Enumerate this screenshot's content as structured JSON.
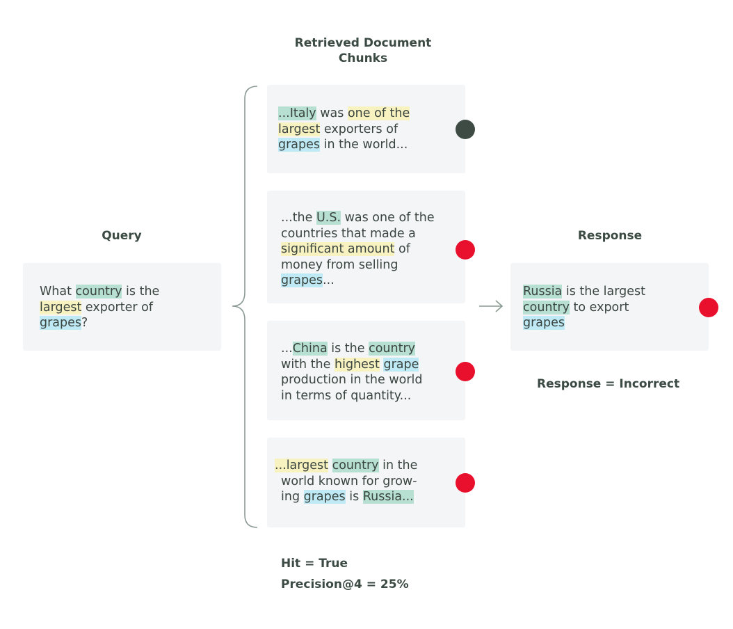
{
  "colors": {
    "relevant_dot": "#3d4b44",
    "irrelevant_dot": "#e8102c",
    "highlight_green": "#b7e0d2",
    "highlight_yellow": "#f8f1c0",
    "highlight_blue": "#bfe9f5"
  },
  "query": {
    "heading": "Query",
    "lines": [
      [
        {
          "text": "What ",
          "hl": ""
        },
        {
          "text": "country",
          "hl": "green"
        },
        {
          "text": " is the",
          "hl": ""
        }
      ],
      [
        {
          "text": "largest",
          "hl": "yellow"
        },
        {
          "text": " exporter of",
          "hl": ""
        }
      ],
      [
        {
          "text": "grapes",
          "hl": "blue"
        },
        {
          "text": "?",
          "hl": ""
        }
      ]
    ]
  },
  "retrieved": {
    "heading_line1": "Retrieved Document",
    "heading_line2": "Chunks",
    "chunks": [
      {
        "relevant": true,
        "lines": [
          [
            {
              "text": "...Italy",
              "hl": "green"
            },
            {
              "text": " was ",
              "hl": ""
            },
            {
              "text": "one of the",
              "hl": "yellow"
            }
          ],
          [
            {
              "text": "largest",
              "hl": "yellow"
            },
            {
              "text": " exporters of",
              "hl": ""
            }
          ],
          [
            {
              "text": "grapes",
              "hl": "blue"
            },
            {
              "text": " in the world...",
              "hl": ""
            }
          ]
        ]
      },
      {
        "relevant": false,
        "lines": [
          [
            {
              "text": "...the ",
              "hl": ""
            },
            {
              "text": "U.S.",
              "hl": "green"
            },
            {
              "text": " was one of the",
              "hl": ""
            }
          ],
          [
            {
              "text": "countries that made a",
              "hl": ""
            }
          ],
          [
            {
              "text": "significant amount",
              "hl": "yellow"
            },
            {
              "text": " of",
              "hl": ""
            }
          ],
          [
            {
              "text": "money from selling",
              "hl": ""
            }
          ],
          [
            {
              "text": "grapes",
              "hl": "blue"
            },
            {
              "text": "...",
              "hl": ""
            }
          ]
        ]
      },
      {
        "relevant": false,
        "lines": [
          [
            {
              "text": "...",
              "hl": ""
            },
            {
              "text": "China",
              "hl": "green"
            },
            {
              "text": " is the ",
              "hl": ""
            },
            {
              "text": "country",
              "hl": "green"
            }
          ],
          [
            {
              "text": "with the ",
              "hl": ""
            },
            {
              "text": "highest",
              "hl": "yellow"
            },
            {
              "text": " ",
              "hl": ""
            },
            {
              "text": "grape",
              "hl": "blue"
            }
          ],
          [
            {
              "text": "production in the world",
              "hl": ""
            }
          ],
          [
            {
              "text": "in terms of quantity...",
              "hl": ""
            }
          ]
        ]
      },
      {
        "relevant": false,
        "lines": [
          [
            {
              "text": "...largest",
              "hl": "yellow"
            },
            {
              "text": " ",
              "hl": ""
            },
            {
              "text": "country",
              "hl": "green"
            },
            {
              "text": " in the",
              "hl": ""
            }
          ],
          [
            {
              "text": "world known for grow-",
              "hl": ""
            }
          ],
          [
            {
              "text": "ing ",
              "hl": ""
            },
            {
              "text": "grapes",
              "hl": "blue"
            },
            {
              "text": " is ",
              "hl": ""
            },
            {
              "text": "Russia...",
              "hl": "green"
            }
          ]
        ]
      }
    ]
  },
  "response": {
    "heading": "Response",
    "relevant": false,
    "lines": [
      [
        {
          "text": "Russia",
          "hl": "green"
        },
        {
          "text": " is the largest",
          "hl": ""
        }
      ],
      [
        {
          "text": "country",
          "hl": "green"
        },
        {
          "text": " to export",
          "hl": ""
        }
      ],
      [
        {
          "text": "grapes",
          "hl": "blue"
        }
      ]
    ],
    "verdict": "Response = Incorrect"
  },
  "metrics": {
    "hit": "Hit = True",
    "precision": "Precision@4 = 25%"
  }
}
